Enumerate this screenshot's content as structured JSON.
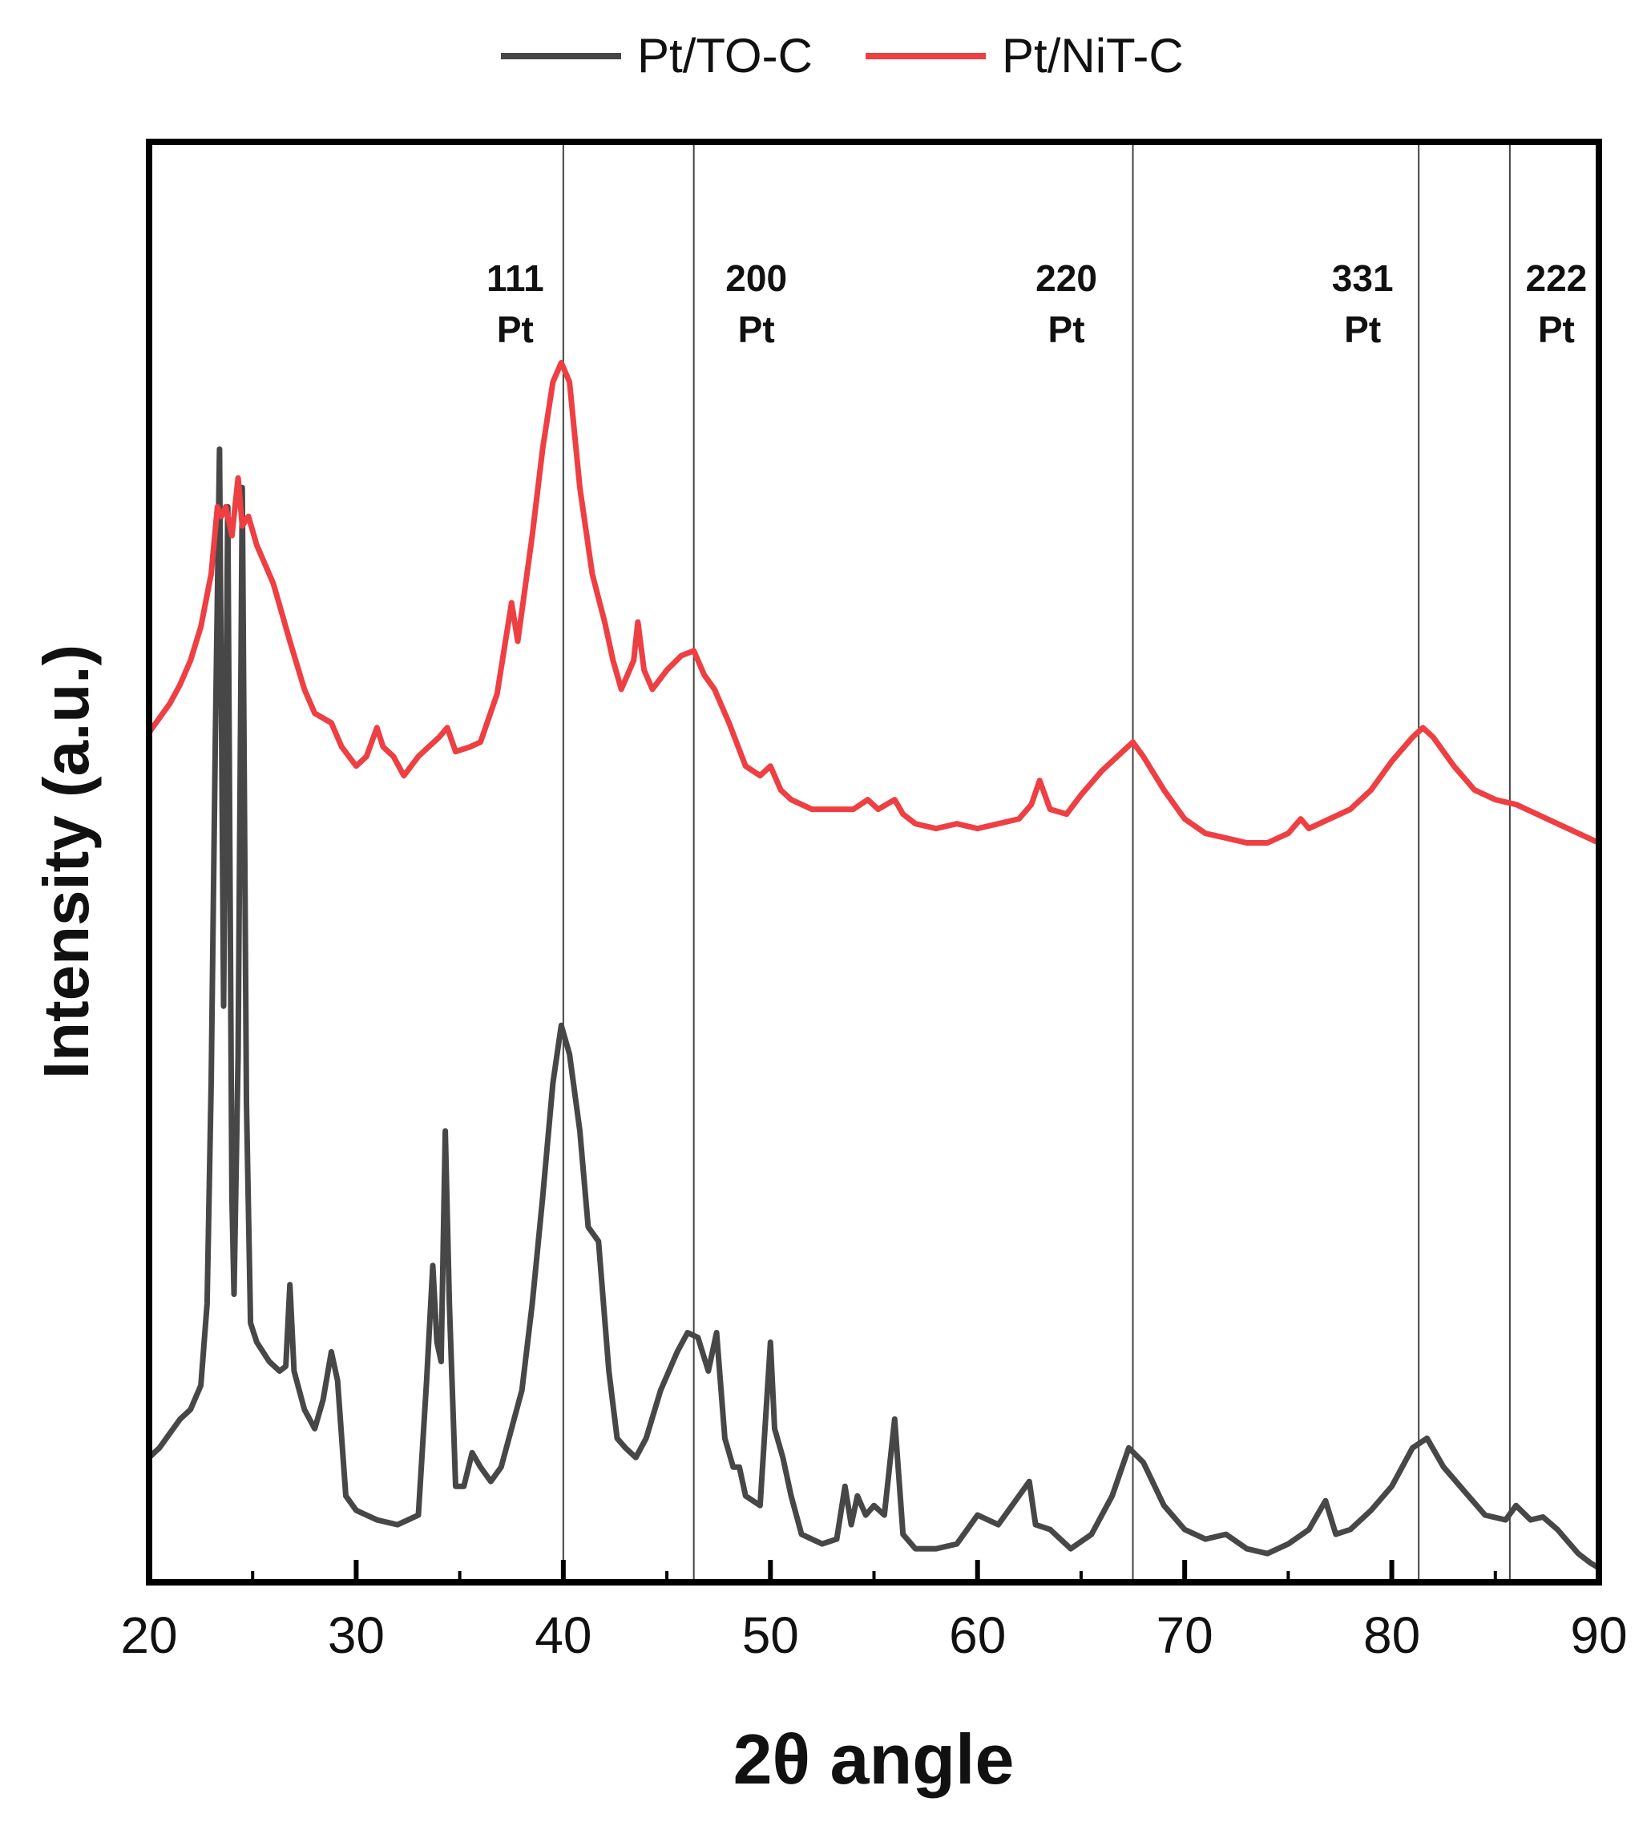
{
  "chart_data": {
    "type": "line",
    "title": "",
    "xlabel": "2θ angle",
    "ylabel": "Intensity (a.u.)",
    "xlim": [
      20,
      90
    ],
    "xticks": [
      20,
      30,
      40,
      50,
      60,
      70,
      80,
      90
    ],
    "yticks": [],
    "ylim": [
      0,
      150
    ],
    "legend_position": "top-center",
    "grid": false,
    "reference_lines": [
      {
        "x": 40.0,
        "label_top": "111",
        "label_bottom": "Pt"
      },
      {
        "x": 46.3,
        "label_top": "200",
        "label_bottom": "Pt"
      },
      {
        "x": 67.5,
        "label_top": "220",
        "label_bottom": "Pt"
      },
      {
        "x": 81.3,
        "label_top": "331",
        "label_bottom": "Pt"
      },
      {
        "x": 85.7,
        "label_top": "222",
        "label_bottom": "Pt"
      }
    ],
    "series": [
      {
        "name": "Pt/TO-C",
        "color": "#474747",
        "points": [
          [
            20.0,
            13
          ],
          [
            20.5,
            14
          ],
          [
            21.0,
            15.5
          ],
          [
            21.5,
            17
          ],
          [
            22.0,
            18
          ],
          [
            22.5,
            20.5
          ],
          [
            22.8,
            29
          ],
          [
            23.0,
            52
          ],
          [
            23.2,
            88
          ],
          [
            23.4,
            118
          ],
          [
            23.6,
            60
          ],
          [
            23.8,
            112
          ],
          [
            24.0,
            40
          ],
          [
            24.1,
            30
          ],
          [
            24.3,
            55
          ],
          [
            24.5,
            114
          ],
          [
            24.7,
            50
          ],
          [
            24.9,
            27
          ],
          [
            25.2,
            25
          ],
          [
            25.8,
            23
          ],
          [
            26.3,
            22
          ],
          [
            26.6,
            22.5
          ],
          [
            26.8,
            31
          ],
          [
            27.0,
            22
          ],
          [
            27.5,
            18
          ],
          [
            28.0,
            16
          ],
          [
            28.4,
            19
          ],
          [
            28.8,
            24
          ],
          [
            29.1,
            21
          ],
          [
            29.5,
            9
          ],
          [
            30.0,
            7.5
          ],
          [
            31.0,
            6.5
          ],
          [
            32.0,
            6
          ],
          [
            33.0,
            7
          ],
          [
            33.4,
            21
          ],
          [
            33.7,
            33
          ],
          [
            33.9,
            25
          ],
          [
            34.1,
            23
          ],
          [
            34.3,
            47
          ],
          [
            34.5,
            29
          ],
          [
            34.8,
            10
          ],
          [
            35.2,
            10
          ],
          [
            35.6,
            13.5
          ],
          [
            36.0,
            12
          ],
          [
            36.5,
            10.5
          ],
          [
            37.0,
            12
          ],
          [
            38.0,
            20
          ],
          [
            38.5,
            29
          ],
          [
            39.0,
            40
          ],
          [
            39.5,
            52
          ],
          [
            39.9,
            58
          ],
          [
            40.3,
            55
          ],
          [
            40.8,
            47
          ],
          [
            41.2,
            37
          ],
          [
            41.7,
            35.5
          ],
          [
            42.2,
            22
          ],
          [
            42.6,
            15
          ],
          [
            43.0,
            14
          ],
          [
            43.5,
            13
          ],
          [
            44.0,
            15
          ],
          [
            44.7,
            20
          ],
          [
            45.5,
            24
          ],
          [
            46.0,
            26
          ],
          [
            46.5,
            25.5
          ],
          [
            47.0,
            22
          ],
          [
            47.4,
            26
          ],
          [
            47.8,
            15
          ],
          [
            48.2,
            12
          ],
          [
            48.5,
            12
          ],
          [
            48.8,
            9
          ],
          [
            49.5,
            8
          ],
          [
            50.0,
            25
          ],
          [
            50.2,
            16
          ],
          [
            50.6,
            13
          ],
          [
            51.0,
            9
          ],
          [
            51.5,
            5
          ],
          [
            52.5,
            4
          ],
          [
            53.2,
            4.5
          ],
          [
            53.6,
            10
          ],
          [
            53.9,
            6
          ],
          [
            54.2,
            9
          ],
          [
            54.6,
            7
          ],
          [
            55.0,
            8
          ],
          [
            55.5,
            7
          ],
          [
            56.0,
            17
          ],
          [
            56.4,
            5
          ],
          [
            57.0,
            3.5
          ],
          [
            58.0,
            3.5
          ],
          [
            59.0,
            4
          ],
          [
            60.0,
            7
          ],
          [
            61.0,
            6
          ],
          [
            62.0,
            9
          ],
          [
            62.5,
            10.5
          ],
          [
            62.8,
            6
          ],
          [
            63.5,
            5.5
          ],
          [
            64.5,
            3.5
          ],
          [
            65.5,
            5
          ],
          [
            66.5,
            9
          ],
          [
            67.3,
            14
          ],
          [
            68.0,
            12.5
          ],
          [
            69.0,
            8
          ],
          [
            70.0,
            5.5
          ],
          [
            71.0,
            4.5
          ],
          [
            72.0,
            5
          ],
          [
            73.0,
            3.5
          ],
          [
            74.0,
            3
          ],
          [
            75.0,
            4
          ],
          [
            76.0,
            5.5
          ],
          [
            76.8,
            8.5
          ],
          [
            77.3,
            5
          ],
          [
            78.0,
            5.5
          ],
          [
            79.0,
            7.5
          ],
          [
            80.0,
            10
          ],
          [
            81.0,
            14
          ],
          [
            81.7,
            15
          ],
          [
            82.5,
            12
          ],
          [
            83.5,
            9.5
          ],
          [
            84.5,
            7
          ],
          [
            85.5,
            6.5
          ],
          [
            86.0,
            8
          ],
          [
            86.7,
            6.5
          ],
          [
            87.3,
            6.8
          ],
          [
            88.0,
            5.5
          ],
          [
            89.0,
            3
          ],
          [
            89.6,
            2
          ],
          [
            90.0,
            1.5
          ]
        ]
      },
      {
        "name": "Pt/NiT-C",
        "color": "#ee3f42",
        "points": [
          [
            20.0,
            88.5
          ],
          [
            20.5,
            90
          ],
          [
            21.0,
            91.5
          ],
          [
            21.5,
            93.5
          ],
          [
            22.0,
            96
          ],
          [
            22.5,
            99.5
          ],
          [
            23.0,
            105
          ],
          [
            23.3,
            112
          ],
          [
            23.5,
            111
          ],
          [
            23.7,
            112
          ],
          [
            24.0,
            109
          ],
          [
            24.3,
            115
          ],
          [
            24.5,
            110
          ],
          [
            24.8,
            111
          ],
          [
            25.2,
            108
          ],
          [
            26.0,
            104
          ],
          [
            26.8,
            98
          ],
          [
            27.5,
            93
          ],
          [
            28.0,
            90.5
          ],
          [
            28.8,
            89.5
          ],
          [
            29.3,
            87
          ],
          [
            30.0,
            85
          ],
          [
            30.5,
            86
          ],
          [
            31.0,
            89
          ],
          [
            31.3,
            87
          ],
          [
            31.8,
            86
          ],
          [
            32.3,
            84
          ],
          [
            33.0,
            86
          ],
          [
            33.5,
            87
          ],
          [
            34.0,
            88
          ],
          [
            34.4,
            89
          ],
          [
            34.8,
            86.5
          ],
          [
            35.5,
            87
          ],
          [
            36.0,
            87.5
          ],
          [
            36.8,
            92.5
          ],
          [
            37.5,
            102
          ],
          [
            37.8,
            98
          ],
          [
            38.5,
            109
          ],
          [
            39.0,
            118
          ],
          [
            39.5,
            125
          ],
          [
            39.9,
            127
          ],
          [
            40.3,
            125
          ],
          [
            40.8,
            114
          ],
          [
            41.4,
            105
          ],
          [
            42.0,
            100
          ],
          [
            42.4,
            96
          ],
          [
            42.8,
            93
          ],
          [
            43.4,
            96
          ],
          [
            43.6,
            100
          ],
          [
            43.9,
            95
          ],
          [
            44.3,
            93
          ],
          [
            45.0,
            95
          ],
          [
            45.7,
            96.5
          ],
          [
            46.3,
            97
          ],
          [
            46.8,
            94.5
          ],
          [
            47.3,
            93
          ],
          [
            48.0,
            89.5
          ],
          [
            48.8,
            85
          ],
          [
            49.5,
            84
          ],
          [
            50.0,
            85
          ],
          [
            50.5,
            82.5
          ],
          [
            51.0,
            81.5
          ],
          [
            52.0,
            80.5
          ],
          [
            53.0,
            80.5
          ],
          [
            54.0,
            80.5
          ],
          [
            54.7,
            81.5
          ],
          [
            55.2,
            80.5
          ],
          [
            56.0,
            81.5
          ],
          [
            56.4,
            80
          ],
          [
            57.0,
            79
          ],
          [
            58.0,
            78.5
          ],
          [
            59.0,
            79
          ],
          [
            60.0,
            78.5
          ],
          [
            61.0,
            79
          ],
          [
            62.0,
            79.5
          ],
          [
            62.6,
            81
          ],
          [
            63.0,
            83.5
          ],
          [
            63.5,
            80.5
          ],
          [
            64.3,
            80
          ],
          [
            65.0,
            82
          ],
          [
            66.0,
            84.5
          ],
          [
            67.0,
            86.5
          ],
          [
            67.5,
            87.5
          ],
          [
            68.0,
            86
          ],
          [
            69.0,
            82.5
          ],
          [
            70.0,
            79.5
          ],
          [
            71.0,
            78
          ],
          [
            72.0,
            77.5
          ],
          [
            73.0,
            77
          ],
          [
            74.0,
            77
          ],
          [
            75.0,
            78
          ],
          [
            75.6,
            79.5
          ],
          [
            76.0,
            78.5
          ],
          [
            77.0,
            79.5
          ],
          [
            78.0,
            80.5
          ],
          [
            79.0,
            82.5
          ],
          [
            80.0,
            85.5
          ],
          [
            81.0,
            88
          ],
          [
            81.5,
            89
          ],
          [
            82.0,
            88
          ],
          [
            83.0,
            85
          ],
          [
            84.0,
            82.5
          ],
          [
            85.0,
            81.5
          ],
          [
            86.0,
            81
          ],
          [
            87.0,
            80
          ],
          [
            88.0,
            79
          ],
          [
            89.0,
            78
          ],
          [
            90.0,
            77
          ]
        ]
      }
    ]
  }
}
